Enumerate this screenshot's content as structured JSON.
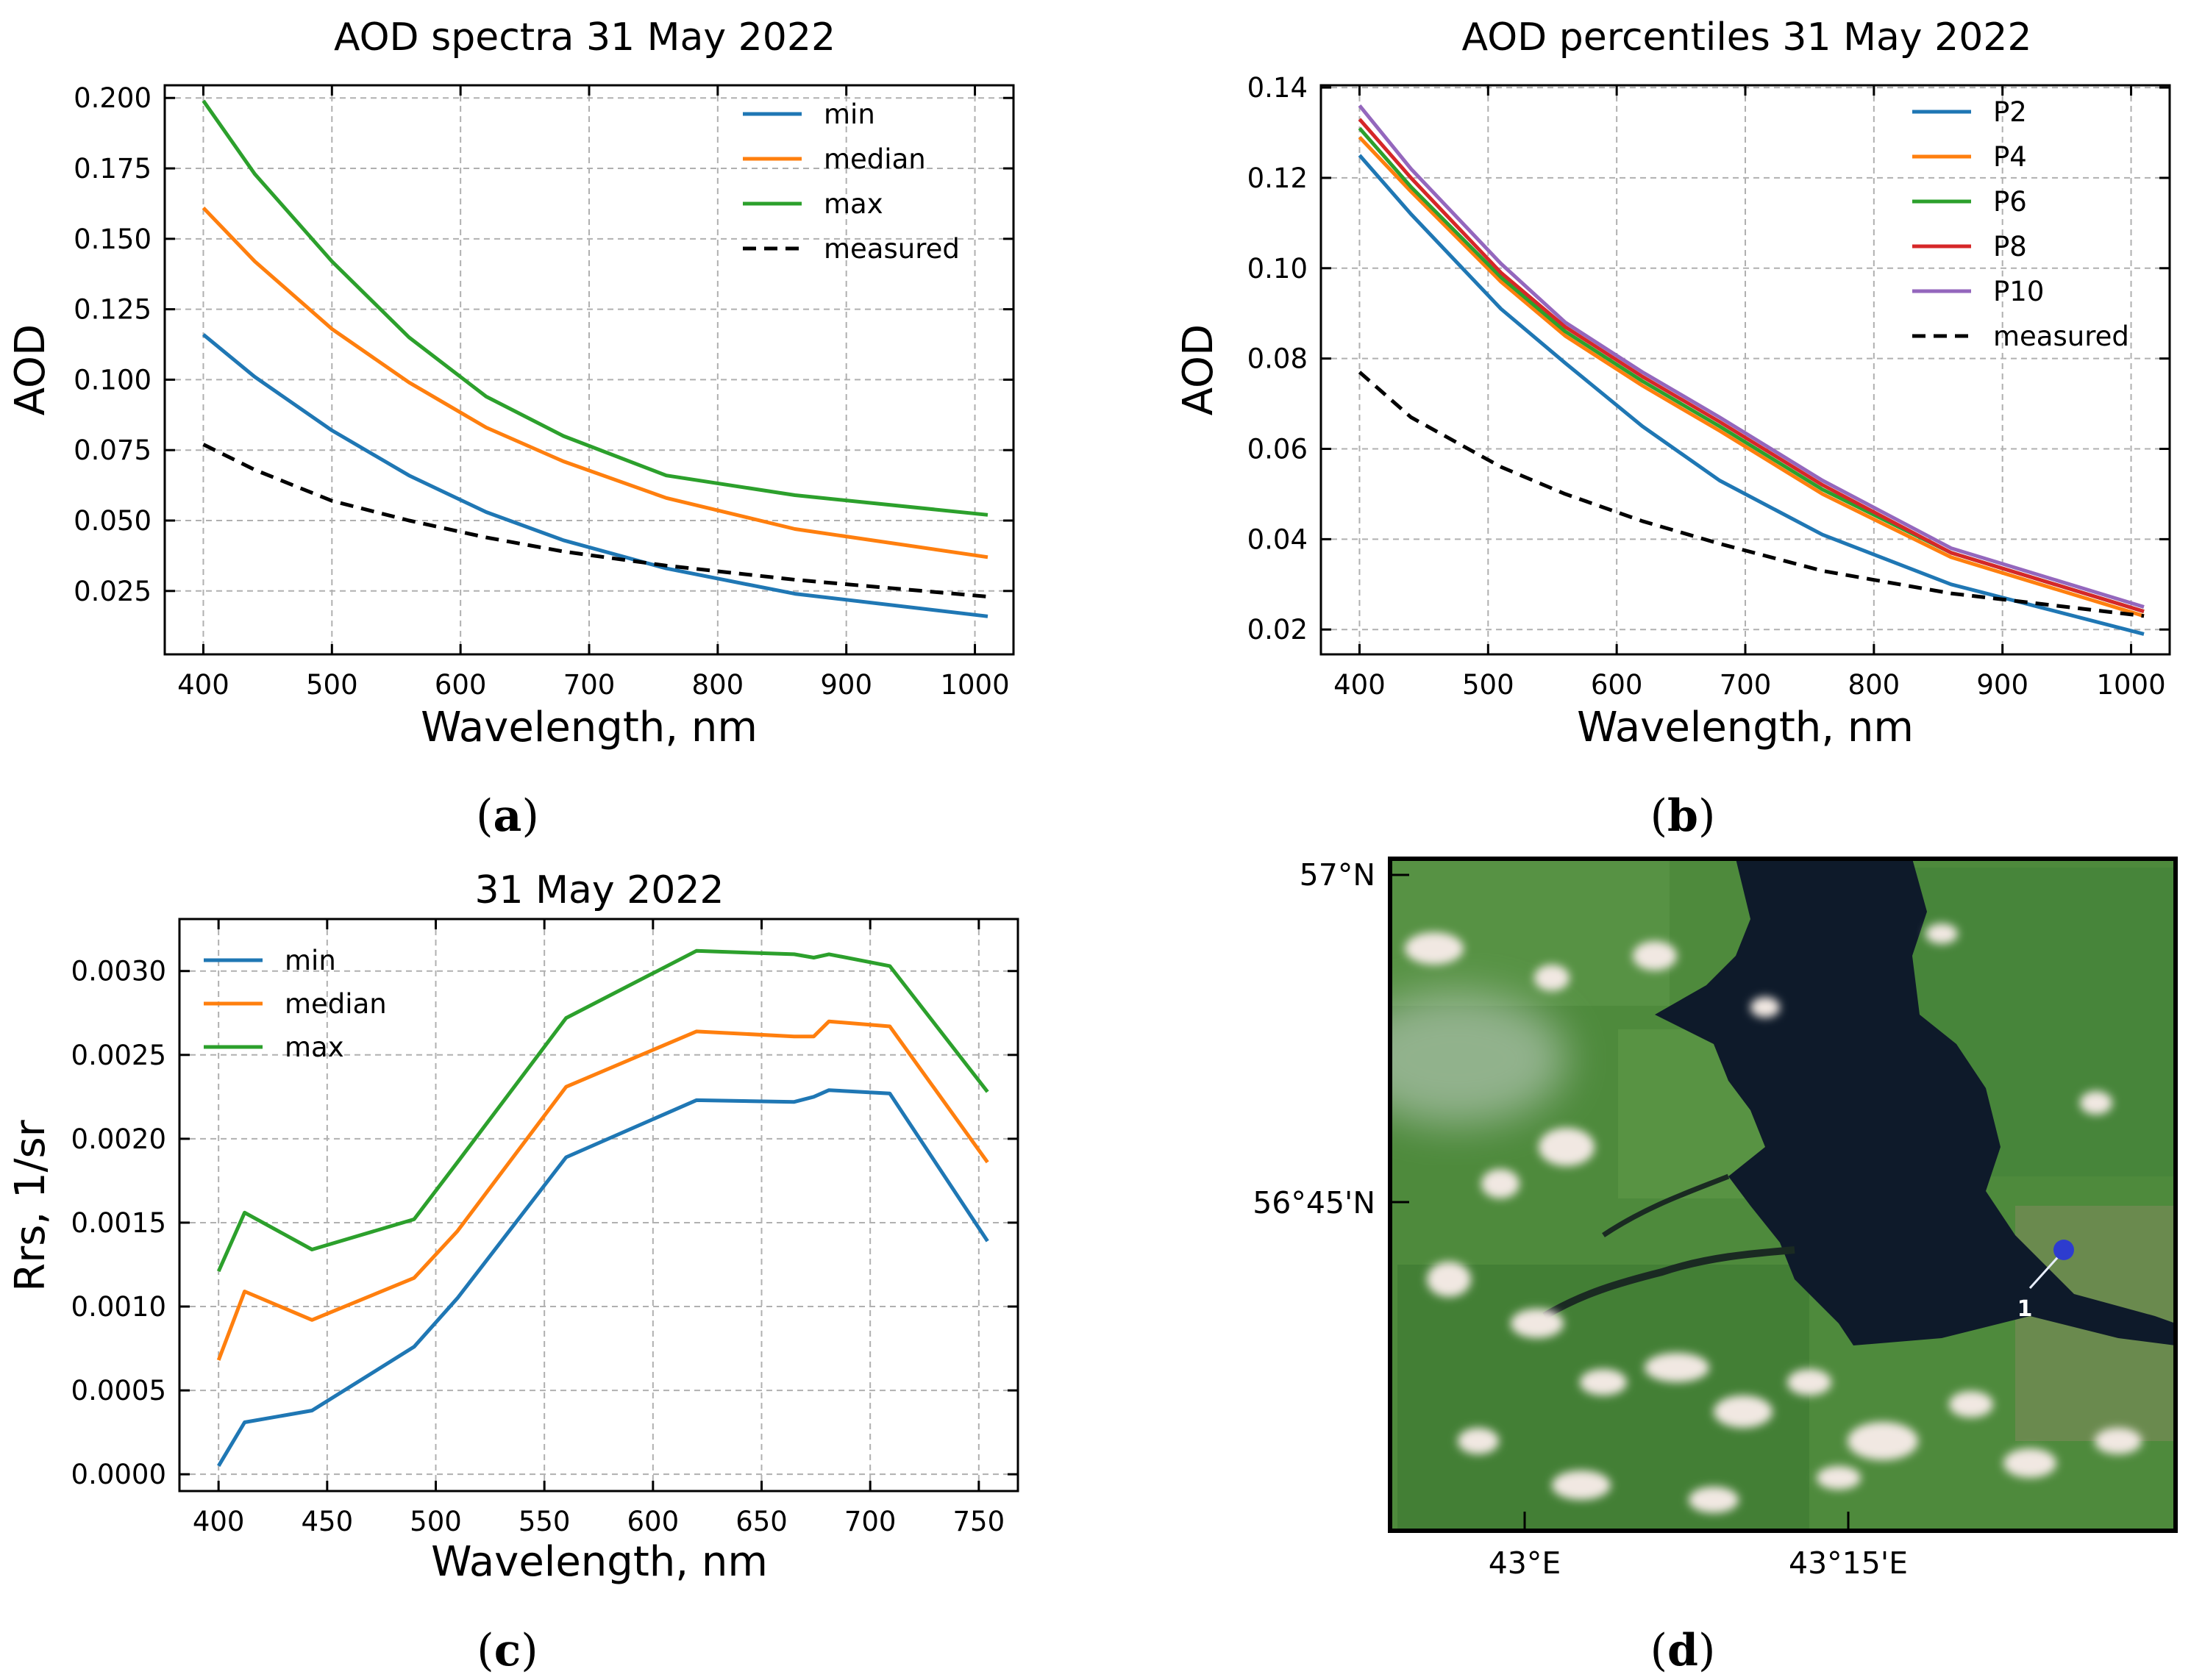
{
  "chart_data": [
    {
      "id": "a",
      "type": "line",
      "title": "AOD spectra 31 May 2022",
      "xlabel": "Wavelength, nm",
      "ylabel": "AOD",
      "xlim": [
        370,
        1030
      ],
      "ylim": [
        0.0025,
        0.2045
      ],
      "xticks": [
        400,
        500,
        600,
        700,
        800,
        900,
        1000
      ],
      "xtick_labels": [
        "400",
        "500",
        "600",
        "700",
        "800",
        "900",
        "1000"
      ],
      "yticks": [
        0.025,
        0.05,
        0.075,
        0.1,
        0.125,
        0.15,
        0.175,
        0.2
      ],
      "ytick_labels": [
        "0.025",
        "0.050",
        "0.075",
        "0.100",
        "0.125",
        "0.150",
        "0.175",
        "0.200"
      ],
      "grid": true,
      "legend": "top-right",
      "series": [
        {
          "name": "min",
          "color": "#1f77b4",
          "dash": "solid",
          "x": [
            400,
            440,
            500,
            560,
            620,
            680,
            760,
            860,
            1010
          ],
          "y": [
            0.116,
            0.101,
            0.082,
            0.066,
            0.053,
            0.043,
            0.033,
            0.024,
            0.016
          ]
        },
        {
          "name": "median",
          "color": "#ff7f0e",
          "dash": "solid",
          "x": [
            400,
            440,
            500,
            560,
            620,
            680,
            760,
            860,
            1010
          ],
          "y": [
            0.161,
            0.142,
            0.118,
            0.099,
            0.083,
            0.071,
            0.058,
            0.047,
            0.037
          ]
        },
        {
          "name": "max",
          "color": "#2ca02c",
          "dash": "solid",
          "x": [
            400,
            440,
            500,
            560,
            620,
            680,
            760,
            860,
            1010
          ],
          "y": [
            0.199,
            0.173,
            0.142,
            0.115,
            0.094,
            0.08,
            0.066,
            0.059,
            0.052
          ]
        },
        {
          "name": "measured",
          "color": "#000000",
          "dash": "dashed",
          "x": [
            400,
            440,
            500,
            560,
            620,
            680,
            760,
            860,
            1010
          ],
          "y": [
            0.077,
            0.068,
            0.057,
            0.05,
            0.044,
            0.039,
            0.034,
            0.029,
            0.023
          ]
        }
      ]
    },
    {
      "id": "b",
      "type": "line",
      "title": "AOD percentiles 31 May 2022",
      "xlabel": "Wavelength, nm",
      "ylabel": "AOD",
      "xlim": [
        370,
        1030
      ],
      "ylim": [
        0.0145,
        0.1405
      ],
      "xticks": [
        400,
        500,
        600,
        700,
        800,
        900,
        1000
      ],
      "xtick_labels": [
        "400",
        "500",
        "600",
        "700",
        "800",
        "900",
        "1000"
      ],
      "yticks": [
        0.02,
        0.04,
        0.06,
        0.08,
        0.1,
        0.12,
        0.14
      ],
      "ytick_labels": [
        "0.02",
        "0.04",
        "0.06",
        "0.08",
        "0.10",
        "0.12",
        "0.14"
      ],
      "grid": true,
      "legend": "top-right",
      "series": [
        {
          "name": "P2",
          "color": "#1f77b4",
          "dash": "solid",
          "x": [
            400,
            440,
            510,
            560,
            620,
            680,
            760,
            860,
            1010
          ],
          "y": [
            0.125,
            0.112,
            0.091,
            0.079,
            0.065,
            0.053,
            0.041,
            0.03,
            0.019
          ]
        },
        {
          "name": "P4",
          "color": "#ff7f0e",
          "dash": "solid",
          "x": [
            400,
            440,
            510,
            560,
            620,
            680,
            760,
            860,
            1010
          ],
          "y": [
            0.129,
            0.117,
            0.097,
            0.085,
            0.074,
            0.064,
            0.05,
            0.036,
            0.023
          ]
        },
        {
          "name": "P6",
          "color": "#2ca02c",
          "dash": "solid",
          "x": [
            400,
            440,
            510,
            560,
            620,
            680,
            760,
            860,
            1010
          ],
          "y": [
            0.131,
            0.118,
            0.098,
            0.086,
            0.075,
            0.065,
            0.051,
            0.037,
            0.024
          ]
        },
        {
          "name": "P8",
          "color": "#d62728",
          "dash": "solid",
          "x": [
            400,
            440,
            510,
            560,
            620,
            680,
            760,
            860,
            1010
          ],
          "y": [
            0.133,
            0.12,
            0.099,
            0.087,
            0.076,
            0.066,
            0.052,
            0.037,
            0.024
          ]
        },
        {
          "name": "P10",
          "color": "#9467bd",
          "dash": "solid",
          "x": [
            400,
            440,
            510,
            560,
            620,
            680,
            760,
            860,
            1010
          ],
          "y": [
            0.136,
            0.122,
            0.101,
            0.088,
            0.077,
            0.067,
            0.053,
            0.038,
            0.025
          ]
        },
        {
          "name": "measured",
          "color": "#000000",
          "dash": "dashed",
          "x": [
            400,
            440,
            510,
            560,
            620,
            680,
            760,
            860,
            1010
          ],
          "y": [
            0.077,
            0.067,
            0.056,
            0.05,
            0.044,
            0.039,
            0.033,
            0.028,
            0.023
          ]
        }
      ]
    },
    {
      "id": "c",
      "type": "line",
      "title": "31 May 2022",
      "xlabel": "Wavelength, nm",
      "ylabel": "Rrs, 1/sr",
      "xlim": [
        382,
        768
      ],
      "ylim": [
        -0.0001,
        0.00331
      ],
      "xticks": [
        400,
        450,
        500,
        550,
        600,
        650,
        700,
        750
      ],
      "xtick_labels": [
        "400",
        "450",
        "500",
        "550",
        "600",
        "650",
        "700",
        "750"
      ],
      "yticks": [
        0.0,
        0.0005,
        0.001,
        0.0015,
        0.002,
        0.0025,
        0.003
      ],
      "ytick_labels": [
        "0.0000",
        "0.0005",
        "0.0010",
        "0.0015",
        "0.0020",
        "0.0025",
        "0.0030"
      ],
      "grid": true,
      "legend": "top-left",
      "series": [
        {
          "name": "min",
          "color": "#1f77b4",
          "dash": "solid",
          "x": [
            400,
            412,
            443,
            490,
            510,
            560,
            620,
            665,
            674,
            681,
            709,
            754
          ],
          "y": [
            5e-05,
            0.00031,
            0.00038,
            0.00076,
            0.00105,
            0.00189,
            0.00223,
            0.00222,
            0.00225,
            0.00229,
            0.00227,
            0.00139
          ]
        },
        {
          "name": "median",
          "color": "#ff7f0e",
          "dash": "solid",
          "x": [
            400,
            412,
            443,
            490,
            510,
            560,
            620,
            665,
            674,
            681,
            709,
            754
          ],
          "y": [
            0.00068,
            0.00109,
            0.00092,
            0.00117,
            0.00145,
            0.00231,
            0.00264,
            0.00261,
            0.00261,
            0.0027,
            0.00267,
            0.00186
          ]
        },
        {
          "name": "max",
          "color": "#2ca02c",
          "dash": "solid",
          "x": [
            400,
            412,
            443,
            490,
            510,
            560,
            620,
            665,
            674,
            681,
            709,
            754
          ],
          "y": [
            0.00121,
            0.00156,
            0.00134,
            0.00152,
            0.00186,
            0.00272,
            0.00312,
            0.0031,
            0.00308,
            0.0031,
            0.00303,
            0.00228
          ]
        }
      ]
    }
  ],
  "panel_labels": {
    "a": "a",
    "b": "b",
    "c": "c",
    "d": "d"
  },
  "map": {
    "lat_labels": [
      "57°N",
      "56°45'N"
    ],
    "lon_labels": [
      "43°E",
      "43°15'E"
    ],
    "station_label": "1",
    "colors": {
      "land": "#4e8a3c",
      "water": "#0e1a2a",
      "station": "#2d3ccf"
    }
  }
}
